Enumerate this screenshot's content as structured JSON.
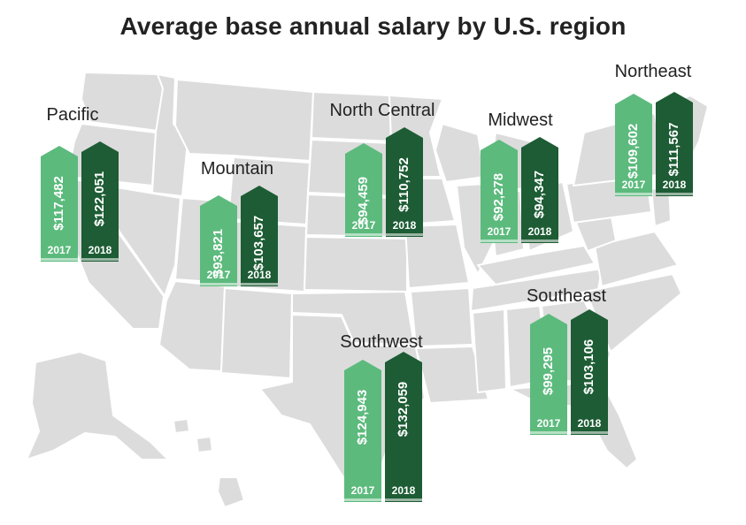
{
  "title": "Average base annual salary by U.S. region",
  "colors": {
    "bar_2017": "#5cba7d",
    "bar_2018": "#1d5c34",
    "map_fill": "#dcdcdc",
    "map_stroke": "#ffffff"
  },
  "chart_data": {
    "type": "bar",
    "title": "Average base annual salary by U.S. region",
    "categories": [
      "Pacific",
      "Mountain",
      "North Central",
      "Midwest",
      "Northeast",
      "Southwest",
      "Southeast"
    ],
    "series": [
      {
        "name": "2017",
        "values": [
          117482,
          93821,
          94459,
          92278,
          109602,
          124943,
          99295
        ]
      },
      {
        "name": "2018",
        "values": [
          122051,
          103657,
          110752,
          94347,
          111567,
          132059,
          103106
        ]
      }
    ],
    "value_labels": {
      "2017": [
        "$117,482",
        "$93,821",
        "$94,459",
        "$92,278",
        "$109,602",
        "$124,943",
        "$99,295"
      ],
      "2018": [
        "$122,051",
        "$103,657",
        "$110,752",
        "$94,347",
        "$111,567",
        "$132,059",
        "$103,106"
      ]
    },
    "year_labels": [
      "2017",
      "2018"
    ]
  }
}
